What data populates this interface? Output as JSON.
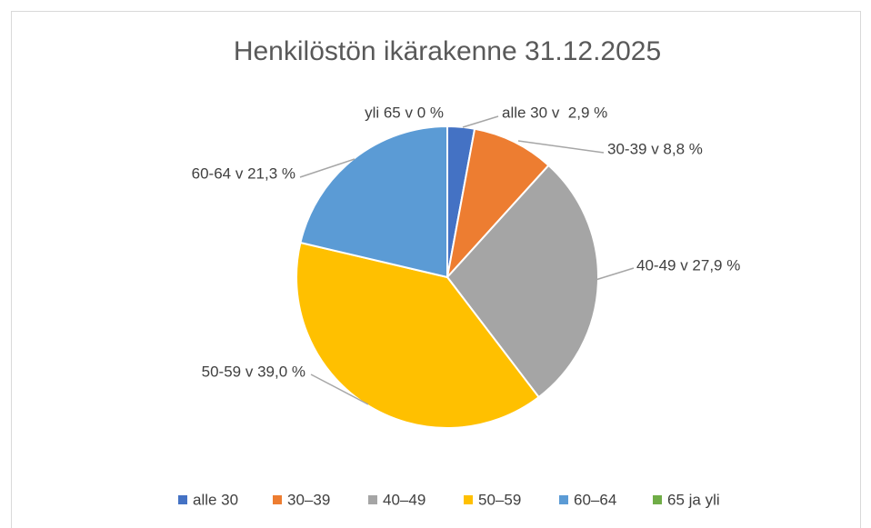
{
  "chart_data": {
    "type": "pie",
    "title": "Henkilöstön ikärakenne 31.12.2025",
    "categories": [
      "alle 30",
      "30–39",
      "40–49",
      "50–59",
      "60–64",
      "65 ja yli"
    ],
    "values": [
      2.9,
      8.8,
      27.9,
      39.0,
      21.3,
      0
    ],
    "value_labels": [
      "alle 30 v  2,9 %",
      "30-39 v 8,8 %",
      "40-49 v 27,9 %",
      "50-59 v 39,0 %",
      "60-64 v 21,3 %",
      "yli 65 v 0 %"
    ],
    "colors": [
      "#4472c4",
      "#ed7d31",
      "#a5a5a5",
      "#ffc000",
      "#5b9bd5",
      "#70ad47"
    ],
    "legend": "bottom"
  }
}
